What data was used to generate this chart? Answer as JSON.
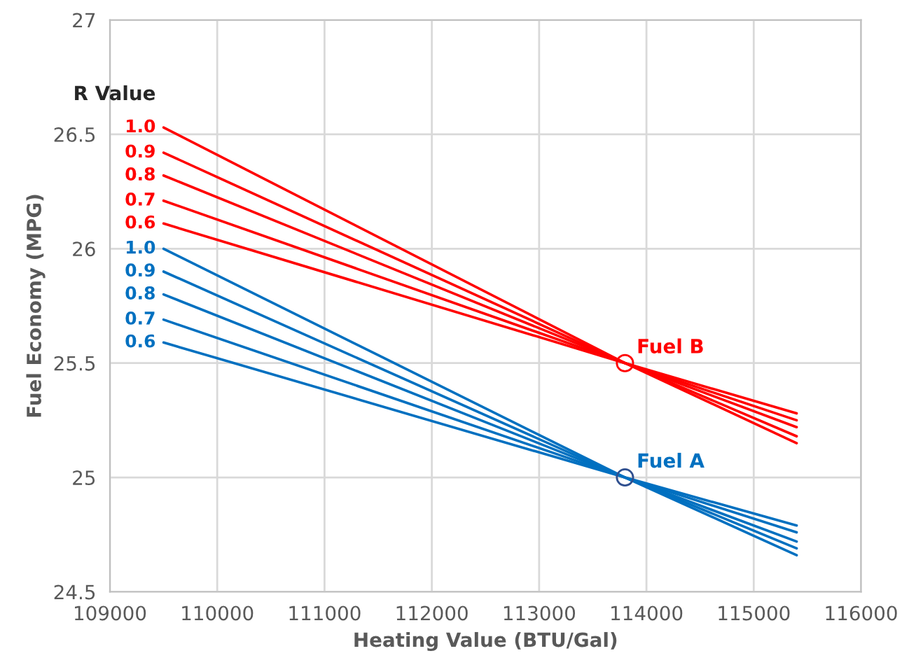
{
  "chart_data": {
    "type": "line",
    "xlabel": "Heating Value (BTU/Gal)",
    "ylabel": "Fuel Economy (MPG)",
    "xlim": [
      109000,
      116000
    ],
    "xticks": [
      109000,
      110000,
      111000,
      112000,
      113000,
      114000,
      115000,
      116000
    ],
    "ylim": [
      24.5,
      27
    ],
    "yticks": [
      24.5,
      25,
      25.5,
      26,
      26.5,
      27
    ],
    "grid": true,
    "line_style": "solid",
    "marker": "none",
    "series": [
      {
        "name": "1.0",
        "color": "#ff0000",
        "x": [
          109500,
          113800,
          115400
        ],
        "values": [
          26.53,
          25.5,
          25.15
        ]
      },
      {
        "name": "0.9",
        "color": "#ff0000",
        "x": [
          109500,
          113800,
          115400
        ],
        "values": [
          26.42,
          25.5,
          25.18
        ]
      },
      {
        "name": "0.8",
        "color": "#ff0000",
        "x": [
          109500,
          113800,
          115400
        ],
        "values": [
          26.32,
          25.5,
          25.22
        ]
      },
      {
        "name": "0.7",
        "color": "#ff0000",
        "x": [
          109500,
          113800,
          115400
        ],
        "values": [
          26.21,
          25.5,
          25.25
        ]
      },
      {
        "name": "0.6",
        "color": "#ff0000",
        "x": [
          109500,
          113800,
          115400
        ],
        "values": [
          26.11,
          25.5,
          25.28
        ]
      },
      {
        "name": "1.0",
        "color": "#0070c0",
        "x": [
          109500,
          113800,
          115400
        ],
        "values": [
          26.0,
          25.0,
          24.66
        ]
      },
      {
        "name": "0.9",
        "color": "#0070c0",
        "x": [
          109500,
          113800,
          115400
        ],
        "values": [
          25.9,
          25.0,
          24.69
        ]
      },
      {
        "name": "0.8",
        "color": "#0070c0",
        "x": [
          109500,
          113800,
          115400
        ],
        "values": [
          25.8,
          25.0,
          24.72
        ]
      },
      {
        "name": "0.7",
        "color": "#0070c0",
        "x": [
          109500,
          113800,
          115400
        ],
        "values": [
          25.69,
          25.0,
          24.76
        ]
      },
      {
        "name": "0.6",
        "color": "#0070c0",
        "x": [
          109500,
          113800,
          115400
        ],
        "values": [
          25.59,
          25.0,
          24.79
        ]
      },
      {
        "type": "scatter",
        "marker": "circle",
        "color": "#ff0000",
        "x": [
          113800
        ],
        "values": [
          25.5
        ]
      },
      {
        "type": "scatter",
        "marker": "circle",
        "color": "#2f4f8f",
        "x": [
          113800
        ],
        "values": [
          25.0
        ]
      }
    ],
    "annotations": [
      "R Value",
      {
        "text": "Fuel B",
        "x": 113800,
        "y": 25.5
      },
      {
        "text": "Fuel A",
        "x": 113800,
        "y": 25.0
      }
    ]
  }
}
